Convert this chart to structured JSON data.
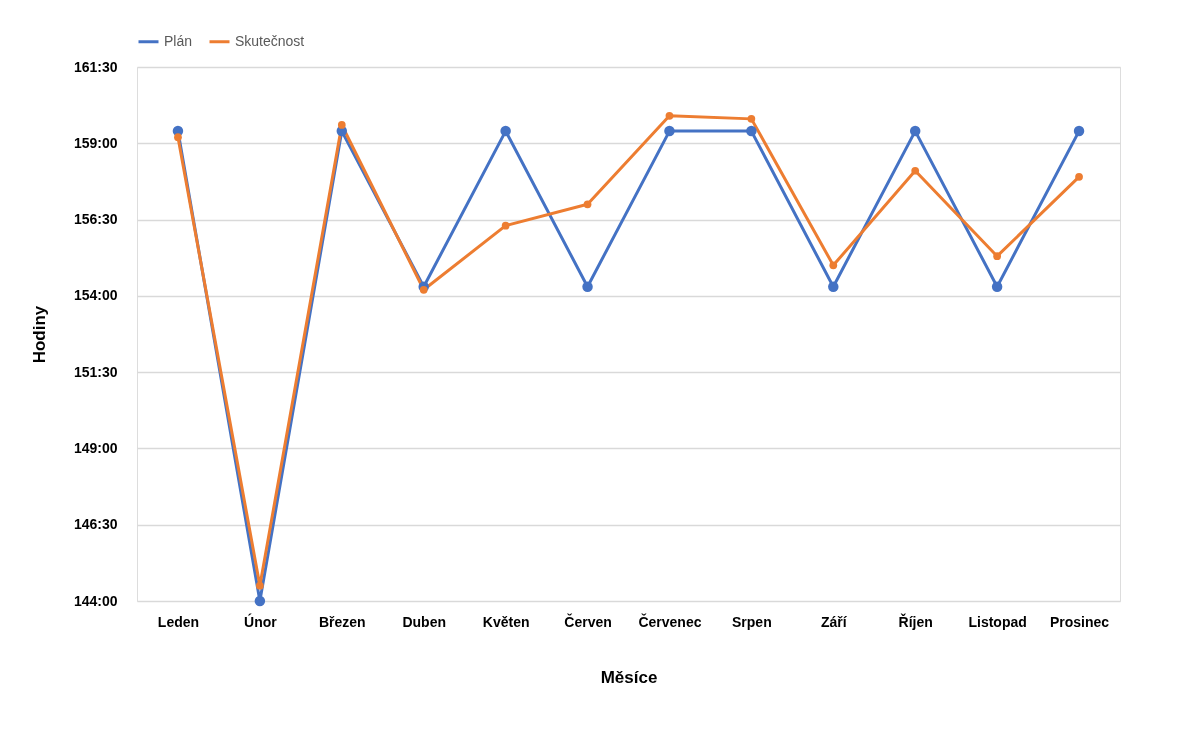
{
  "chart_data": {
    "type": "line",
    "xlabel": "Měsíce",
    "ylabel": "Hodiny",
    "categories": [
      "Leden",
      "Únor",
      "Březen",
      "Duben",
      "Květen",
      "Červen",
      "Červenec",
      "Srpen",
      "Září",
      "Říjen",
      "Listopad",
      "Prosinec"
    ],
    "series": [
      {
        "name": "Plán",
        "color": "#4472c4",
        "values": [
          159.4,
          144.0,
          159.4,
          154.3,
          159.4,
          154.3,
          159.4,
          159.4,
          154.3,
          159.4,
          154.3,
          159.4
        ]
      },
      {
        "name": "Skutečnost",
        "color": "#ed7d31",
        "values": [
          159.2,
          144.5,
          159.6,
          154.2,
          156.3,
          157.0,
          159.9,
          159.8,
          155.0,
          158.1,
          155.3,
          157.9
        ]
      }
    ],
    "ylim": [
      144,
      161.5
    ],
    "yticks": [
      {
        "value": 144,
        "label": "144:00"
      },
      {
        "value": 146.5,
        "label": "146:30"
      },
      {
        "value": 149,
        "label": "149:00"
      },
      {
        "value": 151.5,
        "label": "151:30"
      },
      {
        "value": 154,
        "label": "154:00"
      },
      {
        "value": 156.5,
        "label": "156:30"
      },
      {
        "value": 159,
        "label": "159:00"
      },
      {
        "value": 161.5,
        "label": "161:30"
      }
    ],
    "grid": "y",
    "legend": "top",
    "marker": "circle",
    "line_style": "solid"
  }
}
